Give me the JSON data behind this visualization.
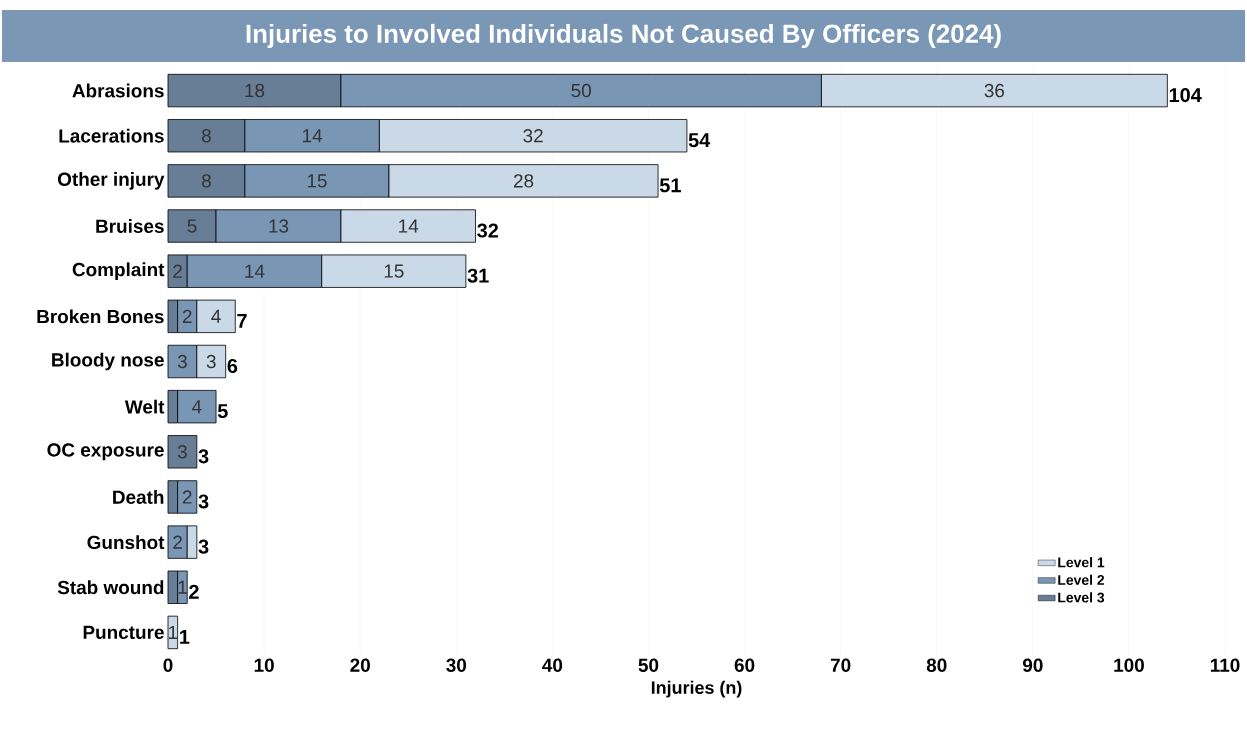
{
  "chart_data": {
    "type": "bar",
    "orientation": "horizontal",
    "stacked": true,
    "title": "Injuries to Involved Individuals Not Caused By Officers (2024)",
    "xlabel": "Injuries (n)",
    "categories": [
      "Abrasions",
      "Lacerations",
      "Other injury",
      "Bruises",
      "Complaint",
      "Broken Bones",
      "Bloody nose",
      "Welt",
      "OC exposure",
      "Death",
      "Gunshot",
      "Stab wound",
      "Puncture"
    ],
    "series": [
      {
        "name": "Level 3",
        "color": "#687d96",
        "values": [
          18,
          8,
          8,
          5,
          2,
          1,
          null,
          1,
          3,
          1,
          null,
          1,
          null
        ],
        "value_labels": [
          "18",
          "8",
          "8",
          "5",
          "2",
          null,
          null,
          null,
          "3",
          null,
          null,
          null,
          null
        ]
      },
      {
        "name": "Level 2",
        "color": "#7a96b5",
        "values": [
          50,
          14,
          15,
          13,
          14,
          2,
          3,
          4,
          null,
          2,
          2,
          1,
          null
        ],
        "value_labels": [
          "50",
          "14",
          "15",
          "13",
          "14",
          "2",
          "3",
          "4",
          null,
          "2",
          "2",
          "1",
          null
        ]
      },
      {
        "name": "Level 1",
        "color": "#c9d9e7",
        "values": [
          36,
          32,
          28,
          14,
          15,
          4,
          3,
          null,
          null,
          null,
          1,
          null,
          1
        ],
        "value_labels": [
          "36",
          "32",
          "28",
          "14",
          "15",
          "4",
          "3",
          null,
          null,
          null,
          null,
          null,
          "1"
        ]
      }
    ],
    "totals": [
      "104",
      "54",
      "51",
      "32",
      "31",
      "7",
      "6",
      "5",
      "3",
      "3",
      "3",
      "2",
      "1"
    ],
    "xlim": [
      0,
      110
    ],
    "xticks": [
      0,
      10,
      20,
      30,
      40,
      50,
      60,
      70,
      80,
      90,
      100,
      110
    ],
    "grid": "x",
    "legend": "bottom right"
  }
}
